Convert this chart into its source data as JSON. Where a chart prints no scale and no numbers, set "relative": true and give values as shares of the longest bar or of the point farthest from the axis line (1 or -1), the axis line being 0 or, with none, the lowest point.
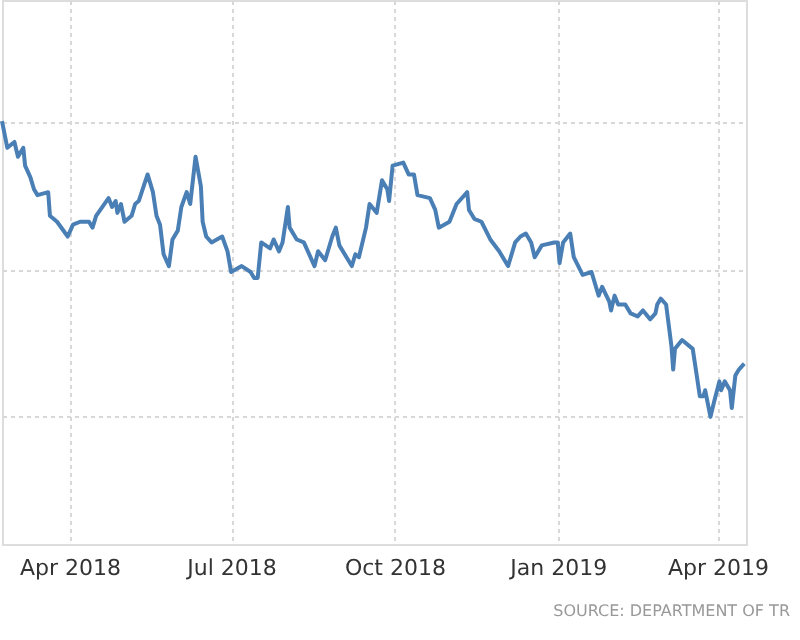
{
  "chart_data": {
    "type": "line",
    "relative": true,
    "grid": true,
    "xlim": [
      "2018-02-22",
      "2019-04-17"
    ],
    "xticks": [
      {
        "value": "2018-04-01",
        "label": "Apr 2018"
      },
      {
        "value": "2018-07-01",
        "label": "Jul 2018"
      },
      {
        "value": "2018-10-01",
        "label": "Oct 2018"
      },
      {
        "value": "2019-01-01",
        "label": "Jan 2019"
      },
      {
        "value": "2019-04-01",
        "label": "Apr 2019"
      }
    ],
    "annotations": [
      "SOURCE: DEPARTMENT OF TR"
    ],
    "x": [
      "2018-02-22",
      "2018-02-25",
      "2018-03-01",
      "2018-03-03",
      "2018-03-06",
      "2018-03-07",
      "2018-03-10",
      "2018-03-12",
      "2018-03-14",
      "2018-03-20",
      "2018-03-21",
      "2018-03-25",
      "2018-03-31",
      "2018-04-03",
      "2018-04-07",
      "2018-04-12",
      "2018-04-14",
      "2018-04-16",
      "2018-04-23",
      "2018-04-25",
      "2018-04-27",
      "2018-04-28",
      "2018-04-30",
      "2018-05-02",
      "2018-05-06",
      "2018-05-08",
      "2018-05-10",
      "2018-05-15",
      "2018-05-18",
      "2018-05-20",
      "2018-05-22",
      "2018-05-24",
      "2018-05-27",
      "2018-05-29",
      "2018-06-01",
      "2018-06-03",
      "2018-06-06",
      "2018-06-08",
      "2018-06-11",
      "2018-06-14",
      "2018-06-15",
      "2018-06-17",
      "2018-06-20",
      "2018-06-26",
      "2018-06-29",
      "2018-07-01",
      "2018-07-07",
      "2018-07-12",
      "2018-07-14",
      "2018-07-16",
      "2018-07-18",
      "2018-07-23",
      "2018-07-25",
      "2018-07-28",
      "2018-07-30",
      "2018-08-02",
      "2018-08-03",
      "2018-08-07",
      "2018-08-11",
      "2018-08-17",
      "2018-08-19",
      "2018-08-23",
      "2018-08-27",
      "2018-08-29",
      "2018-08-31",
      "2018-09-07",
      "2018-09-09",
      "2018-09-11",
      "2018-09-15",
      "2018-09-17",
      "2018-09-21",
      "2018-09-24",
      "2018-09-27",
      "2018-09-28",
      "2018-09-30",
      "2018-10-06",
      "2018-10-09",
      "2018-10-12",
      "2018-10-14",
      "2018-10-21",
      "2018-10-24",
      "2018-10-26",
      "2018-11-01",
      "2018-11-05",
      "2018-11-11",
      "2018-11-12",
      "2018-11-15",
      "2018-11-19",
      "2018-11-24",
      "2018-11-29",
      "2018-12-04",
      "2018-12-08",
      "2018-12-11",
      "2018-12-14",
      "2018-12-17",
      "2018-12-19",
      "2018-12-23",
      "2018-12-30",
      "2019-01-01",
      "2019-01-02",
      "2019-01-04",
      "2019-01-08",
      "2019-01-10",
      "2019-01-15",
      "2019-01-20",
      "2019-01-24",
      "2019-01-26",
      "2019-01-30",
      "2019-01-31",
      "2019-02-02",
      "2019-02-04",
      "2019-02-08",
      "2019-02-11",
      "2019-02-15",
      "2019-02-18",
      "2019-02-22",
      "2019-02-25",
      "2019-02-26",
      "2019-02-28",
      "2019-03-03",
      "2019-03-06",
      "2019-03-07",
      "2019-03-08",
      "2019-03-12",
      "2019-03-18",
      "2019-03-20",
      "2019-03-22",
      "2019-03-24",
      "2019-03-25",
      "2019-03-28",
      "2019-03-30",
      "2019-04-02",
      "2019-04-03",
      "2019-04-05",
      "2019-04-08",
      "2019-04-09",
      "2019-04-11",
      "2019-04-13",
      "2019-04-16"
    ],
    "series": [
      {
        "color": "#4a7fb5",
        "line_style": "solid",
        "marker": "none",
        "values": [
          1.0,
          0.91,
          0.93,
          0.88,
          0.91,
          0.85,
          0.81,
          0.77,
          0.75,
          0.76,
          0.68,
          0.66,
          0.61,
          0.65,
          0.66,
          0.66,
          0.64,
          0.68,
          0.74,
          0.71,
          0.73,
          0.69,
          0.72,
          0.66,
          0.68,
          0.72,
          0.73,
          0.82,
          0.76,
          0.68,
          0.65,
          0.55,
          0.51,
          0.6,
          0.63,
          0.71,
          0.76,
          0.72,
          0.88,
          0.78,
          0.66,
          0.61,
          0.59,
          0.61,
          0.56,
          0.49,
          0.51,
          0.49,
          0.47,
          0.47,
          0.59,
          0.57,
          0.6,
          0.56,
          0.59,
          0.71,
          0.64,
          0.6,
          0.59,
          0.51,
          0.56,
          0.53,
          0.61,
          0.64,
          0.58,
          0.51,
          0.55,
          0.54,
          0.64,
          0.72,
          0.69,
          0.8,
          0.77,
          0.73,
          0.85,
          0.86,
          0.82,
          0.82,
          0.75,
          0.74,
          0.7,
          0.64,
          0.66,
          0.72,
          0.76,
          0.7,
          0.67,
          0.66,
          0.6,
          0.56,
          0.51,
          0.59,
          0.61,
          0.62,
          0.59,
          0.54,
          0.58,
          0.59,
          0.59,
          0.52,
          0.59,
          0.62,
          0.54,
          0.48,
          0.49,
          0.41,
          0.44,
          0.39,
          0.36,
          0.41,
          0.38,
          0.38,
          0.35,
          0.34,
          0.36,
          0.33,
          0.35,
          0.38,
          0.4,
          0.38,
          0.24,
          0.16,
          0.23,
          0.26,
          0.23,
          0.15,
          0.07,
          0.07,
          0.09,
          0.0,
          0.05,
          0.12,
          0.09,
          0.12,
          0.09,
          0.03,
          0.14,
          0.16,
          0.18
        ]
      }
    ]
  }
}
